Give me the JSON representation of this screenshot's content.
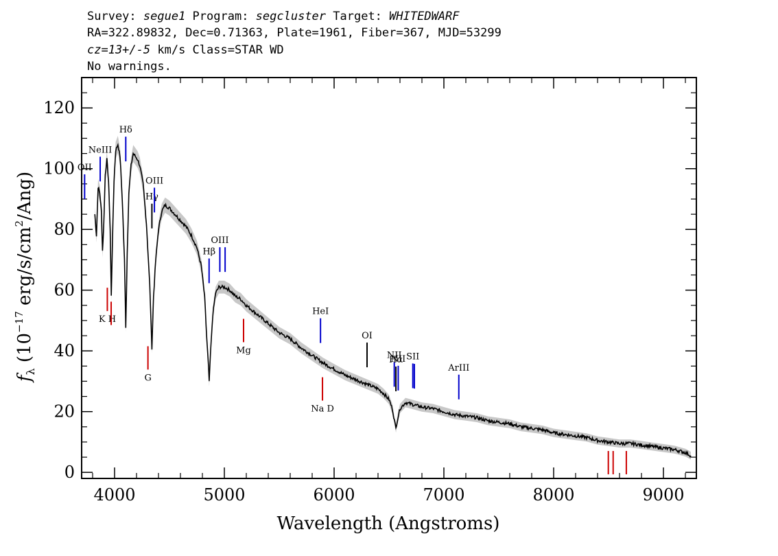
{
  "header": {
    "line1": [
      {
        "text": "Survey: ",
        "italic": false
      },
      {
        "text": "segue1",
        "italic": true
      },
      {
        "text": " Program: ",
        "italic": false
      },
      {
        "text": "segcluster",
        "italic": true
      },
      {
        "text": " Target: ",
        "italic": false
      },
      {
        "text": "WHITEDWARF",
        "italic": true
      }
    ],
    "line2": "RA=322.89832, Dec=0.71363, Plate=1961, Fiber=367, MJD=53299",
    "line3": [
      {
        "text": "cz=13+/-5",
        "italic": true
      },
      {
        "text": " km/s Class=STAR WD",
        "italic": false
      }
    ],
    "line4": "No warnings."
  },
  "chart_data": {
    "type": "line",
    "xlabel": "Wavelength (Angstroms)",
    "ylabel": "f_λ (10^-17 erg/s/cm^2/Ang)",
    "xlim": [
      3700,
      9300
    ],
    "ylim": [
      -2,
      130
    ],
    "xticks": [
      4000,
      5000,
      6000,
      7000,
      8000,
      9000
    ],
    "yticks": [
      0,
      20,
      40,
      60,
      80,
      100,
      120
    ],
    "series": [
      {
        "color": "#000000",
        "points": [
          [
            3820,
            85
          ],
          [
            3835,
            78
          ],
          [
            3850,
            94
          ],
          [
            3865,
            92
          ],
          [
            3880,
            86
          ],
          [
            3890,
            73
          ],
          [
            3900,
            80
          ],
          [
            3915,
            98
          ],
          [
            3930,
            103
          ],
          [
            3945,
            96
          ],
          [
            3960,
            80
          ],
          [
            3970,
            58
          ],
          [
            3980,
            75
          ],
          [
            3995,
            96
          ],
          [
            4010,
            106
          ],
          [
            4030,
            108
          ],
          [
            4050,
            104
          ],
          [
            4070,
            90
          ],
          [
            4090,
            70
          ],
          [
            4102,
            48
          ],
          [
            4115,
            72
          ],
          [
            4130,
            92
          ],
          [
            4150,
            101
          ],
          [
            4170,
            105
          ],
          [
            4190,
            104
          ],
          [
            4210,
            103
          ],
          [
            4230,
            101
          ],
          [
            4260,
            95
          ],
          [
            4290,
            82
          ],
          [
            4320,
            62
          ],
          [
            4340,
            41
          ],
          [
            4355,
            58
          ],
          [
            4375,
            70
          ],
          [
            4400,
            80
          ],
          [
            4430,
            86
          ],
          [
            4460,
            88
          ],
          [
            4500,
            87
          ],
          [
            4550,
            85
          ],
          [
            4600,
            83
          ],
          [
            4650,
            81
          ],
          [
            4700,
            78
          ],
          [
            4750,
            74
          ],
          [
            4790,
            68
          ],
          [
            4820,
            58
          ],
          [
            4840,
            44
          ],
          [
            4855,
            35
          ],
          [
            4862,
            30
          ],
          [
            4875,
            40
          ],
          [
            4895,
            52
          ],
          [
            4920,
            59
          ],
          [
            4950,
            61
          ],
          [
            5000,
            61
          ],
          [
            5050,
            60
          ],
          [
            5100,
            58
          ],
          [
            5150,
            57
          ],
          [
            5200,
            55
          ],
          [
            5300,
            52
          ],
          [
            5400,
            49
          ],
          [
            5500,
            46
          ],
          [
            5600,
            44
          ],
          [
            5700,
            41
          ],
          [
            5800,
            38.5
          ],
          [
            5900,
            36
          ],
          [
            6000,
            34
          ],
          [
            6100,
            32
          ],
          [
            6200,
            30.5
          ],
          [
            6300,
            29
          ],
          [
            6400,
            27.5
          ],
          [
            6450,
            26
          ],
          [
            6500,
            24
          ],
          [
            6530,
            21
          ],
          [
            6550,
            17
          ],
          [
            6563,
            14.5
          ],
          [
            6575,
            17
          ],
          [
            6600,
            21
          ],
          [
            6650,
            23
          ],
          [
            6700,
            22.5
          ],
          [
            6800,
            21.5
          ],
          [
            6900,
            21
          ],
          [
            7000,
            20
          ],
          [
            7100,
            19
          ],
          [
            7200,
            18.5
          ],
          [
            7300,
            18
          ],
          [
            7400,
            17
          ],
          [
            7500,
            16.5
          ],
          [
            7600,
            16
          ],
          [
            7700,
            15
          ],
          [
            7800,
            14.5
          ],
          [
            7900,
            14
          ],
          [
            8000,
            13
          ],
          [
            8100,
            12.5
          ],
          [
            8200,
            12
          ],
          [
            8300,
            11.5
          ],
          [
            8400,
            10.5
          ],
          [
            8500,
            10
          ],
          [
            8600,
            9.5
          ],
          [
            8700,
            9.5
          ],
          [
            8800,
            9
          ],
          [
            8900,
            8.5
          ],
          [
            9000,
            8
          ],
          [
            9100,
            7.5
          ],
          [
            9200,
            6.5
          ],
          [
            9250,
            5.5
          ]
        ]
      }
    ],
    "emission_lines": [
      {
        "label": "OII",
        "wavelength": 3727,
        "color": "#0000cc"
      },
      {
        "label": "NeIII",
        "wavelength": 3869,
        "color": "#0000cc"
      },
      {
        "label": "Hδ",
        "wavelength": 4102,
        "color": "#0000cc"
      },
      {
        "label": "Hγ",
        "wavelength": 4340,
        "color": "#000000"
      },
      {
        "label": "OIII",
        "wavelength": 4363,
        "color": "#0000cc"
      },
      {
        "label": "Hβ",
        "wavelength": 4861,
        "color": "#0000cc"
      },
      {
        "label": "OIII",
        "wavelength": 4959,
        "color": "#0000cc"
      },
      {
        "label": "",
        "wavelength": 5007,
        "color": "#0000cc"
      },
      {
        "label": "HeI",
        "wavelength": 5876,
        "color": "#0000cc"
      },
      {
        "label": "OI",
        "wavelength": 6300,
        "color": "#000000"
      },
      {
        "label": "NII",
        "wavelength": 6548,
        "color": "#0000cc"
      },
      {
        "label": "Hα",
        "wavelength": 6563,
        "color": "#000000"
      },
      {
        "label": "NII",
        "wavelength": 6584,
        "color": "#0000cc"
      },
      {
        "label": "SII",
        "wavelength": 6717,
        "color": "#0000cc"
      },
      {
        "label": "",
        "wavelength": 6731,
        "color": "#0000cc"
      },
      {
        "label": "ArIII",
        "wavelength": 7136,
        "color": "#0000cc"
      }
    ],
    "absorption_lines": [
      {
        "label": "K H",
        "wavelength": 3934,
        "color": "#cc0000"
      },
      {
        "label": "",
        "wavelength": 3969,
        "color": "#cc0000"
      },
      {
        "label": "G",
        "wavelength": 4304,
        "color": "#cc0000"
      },
      {
        "label": "Mg",
        "wavelength": 5175,
        "color": "#cc0000"
      },
      {
        "label": "Na D",
        "wavelength": 5894,
        "color": "#cc0000"
      },
      {
        "label": "",
        "wavelength": 8498,
        "color": "#cc0000"
      },
      {
        "label": "",
        "wavelength": 8542,
        "color": "#cc0000"
      },
      {
        "label": "",
        "wavelength": 8662,
        "color": "#cc0000"
      }
    ]
  }
}
